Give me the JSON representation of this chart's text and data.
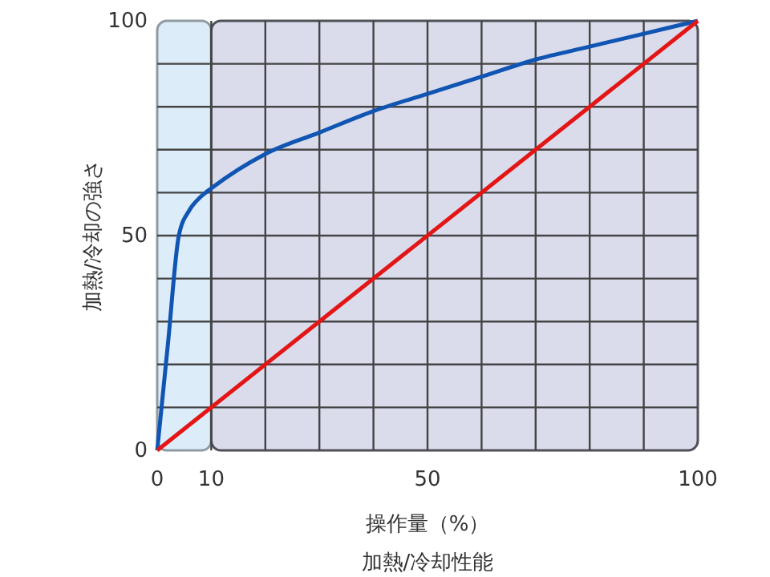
{
  "chart_data": {
    "type": "line",
    "title": "加熱/冷却性能",
    "xlabel": "操作量（%）",
    "ylabel": "加熱/冷却の強さ",
    "xlim": [
      0,
      100
    ],
    "ylim": [
      0,
      100
    ],
    "xticks": [
      0,
      10,
      {
        "value": 20,
        "label": null
      },
      {
        "value": 30,
        "label": null
      },
      {
        "value": 40,
        "label": null
      },
      50,
      {
        "value": 60,
        "label": null
      },
      {
        "value": 70,
        "label": null
      },
      {
        "value": 80,
        "label": null
      },
      {
        "value": 90,
        "label": null
      },
      100
    ],
    "yticks": [
      0,
      {
        "value": 10,
        "label": null
      },
      {
        "value": 20,
        "label": null
      },
      {
        "value": 30,
        "label": null
      },
      {
        "value": 40,
        "label": null
      },
      50,
      {
        "value": 60,
        "label": null
      },
      {
        "value": 70,
        "label": null
      },
      {
        "value": 80,
        "label": null
      },
      {
        "value": 90,
        "label": null
      },
      100
    ],
    "grid": true,
    "bands": [
      {
        "axis": "x",
        "from": 0,
        "to": 10,
        "color": "#dcecf9"
      },
      {
        "axis": "x",
        "from": 10,
        "to": 100,
        "color": "#dadcec"
      }
    ],
    "series": [
      {
        "color": "#1155b3",
        "x": [
          0,
          2,
          4,
          6,
          8,
          10,
          20,
          30,
          40,
          50,
          60,
          70,
          80,
          90,
          100
        ],
        "values": [
          0,
          25,
          50,
          56,
          59,
          61,
          69,
          74,
          79,
          83,
          87,
          91,
          94,
          97,
          100
        ]
      },
      {
        "color": "#e31515",
        "x": [
          0,
          100
        ],
        "values": [
          0,
          100
        ]
      }
    ]
  }
}
